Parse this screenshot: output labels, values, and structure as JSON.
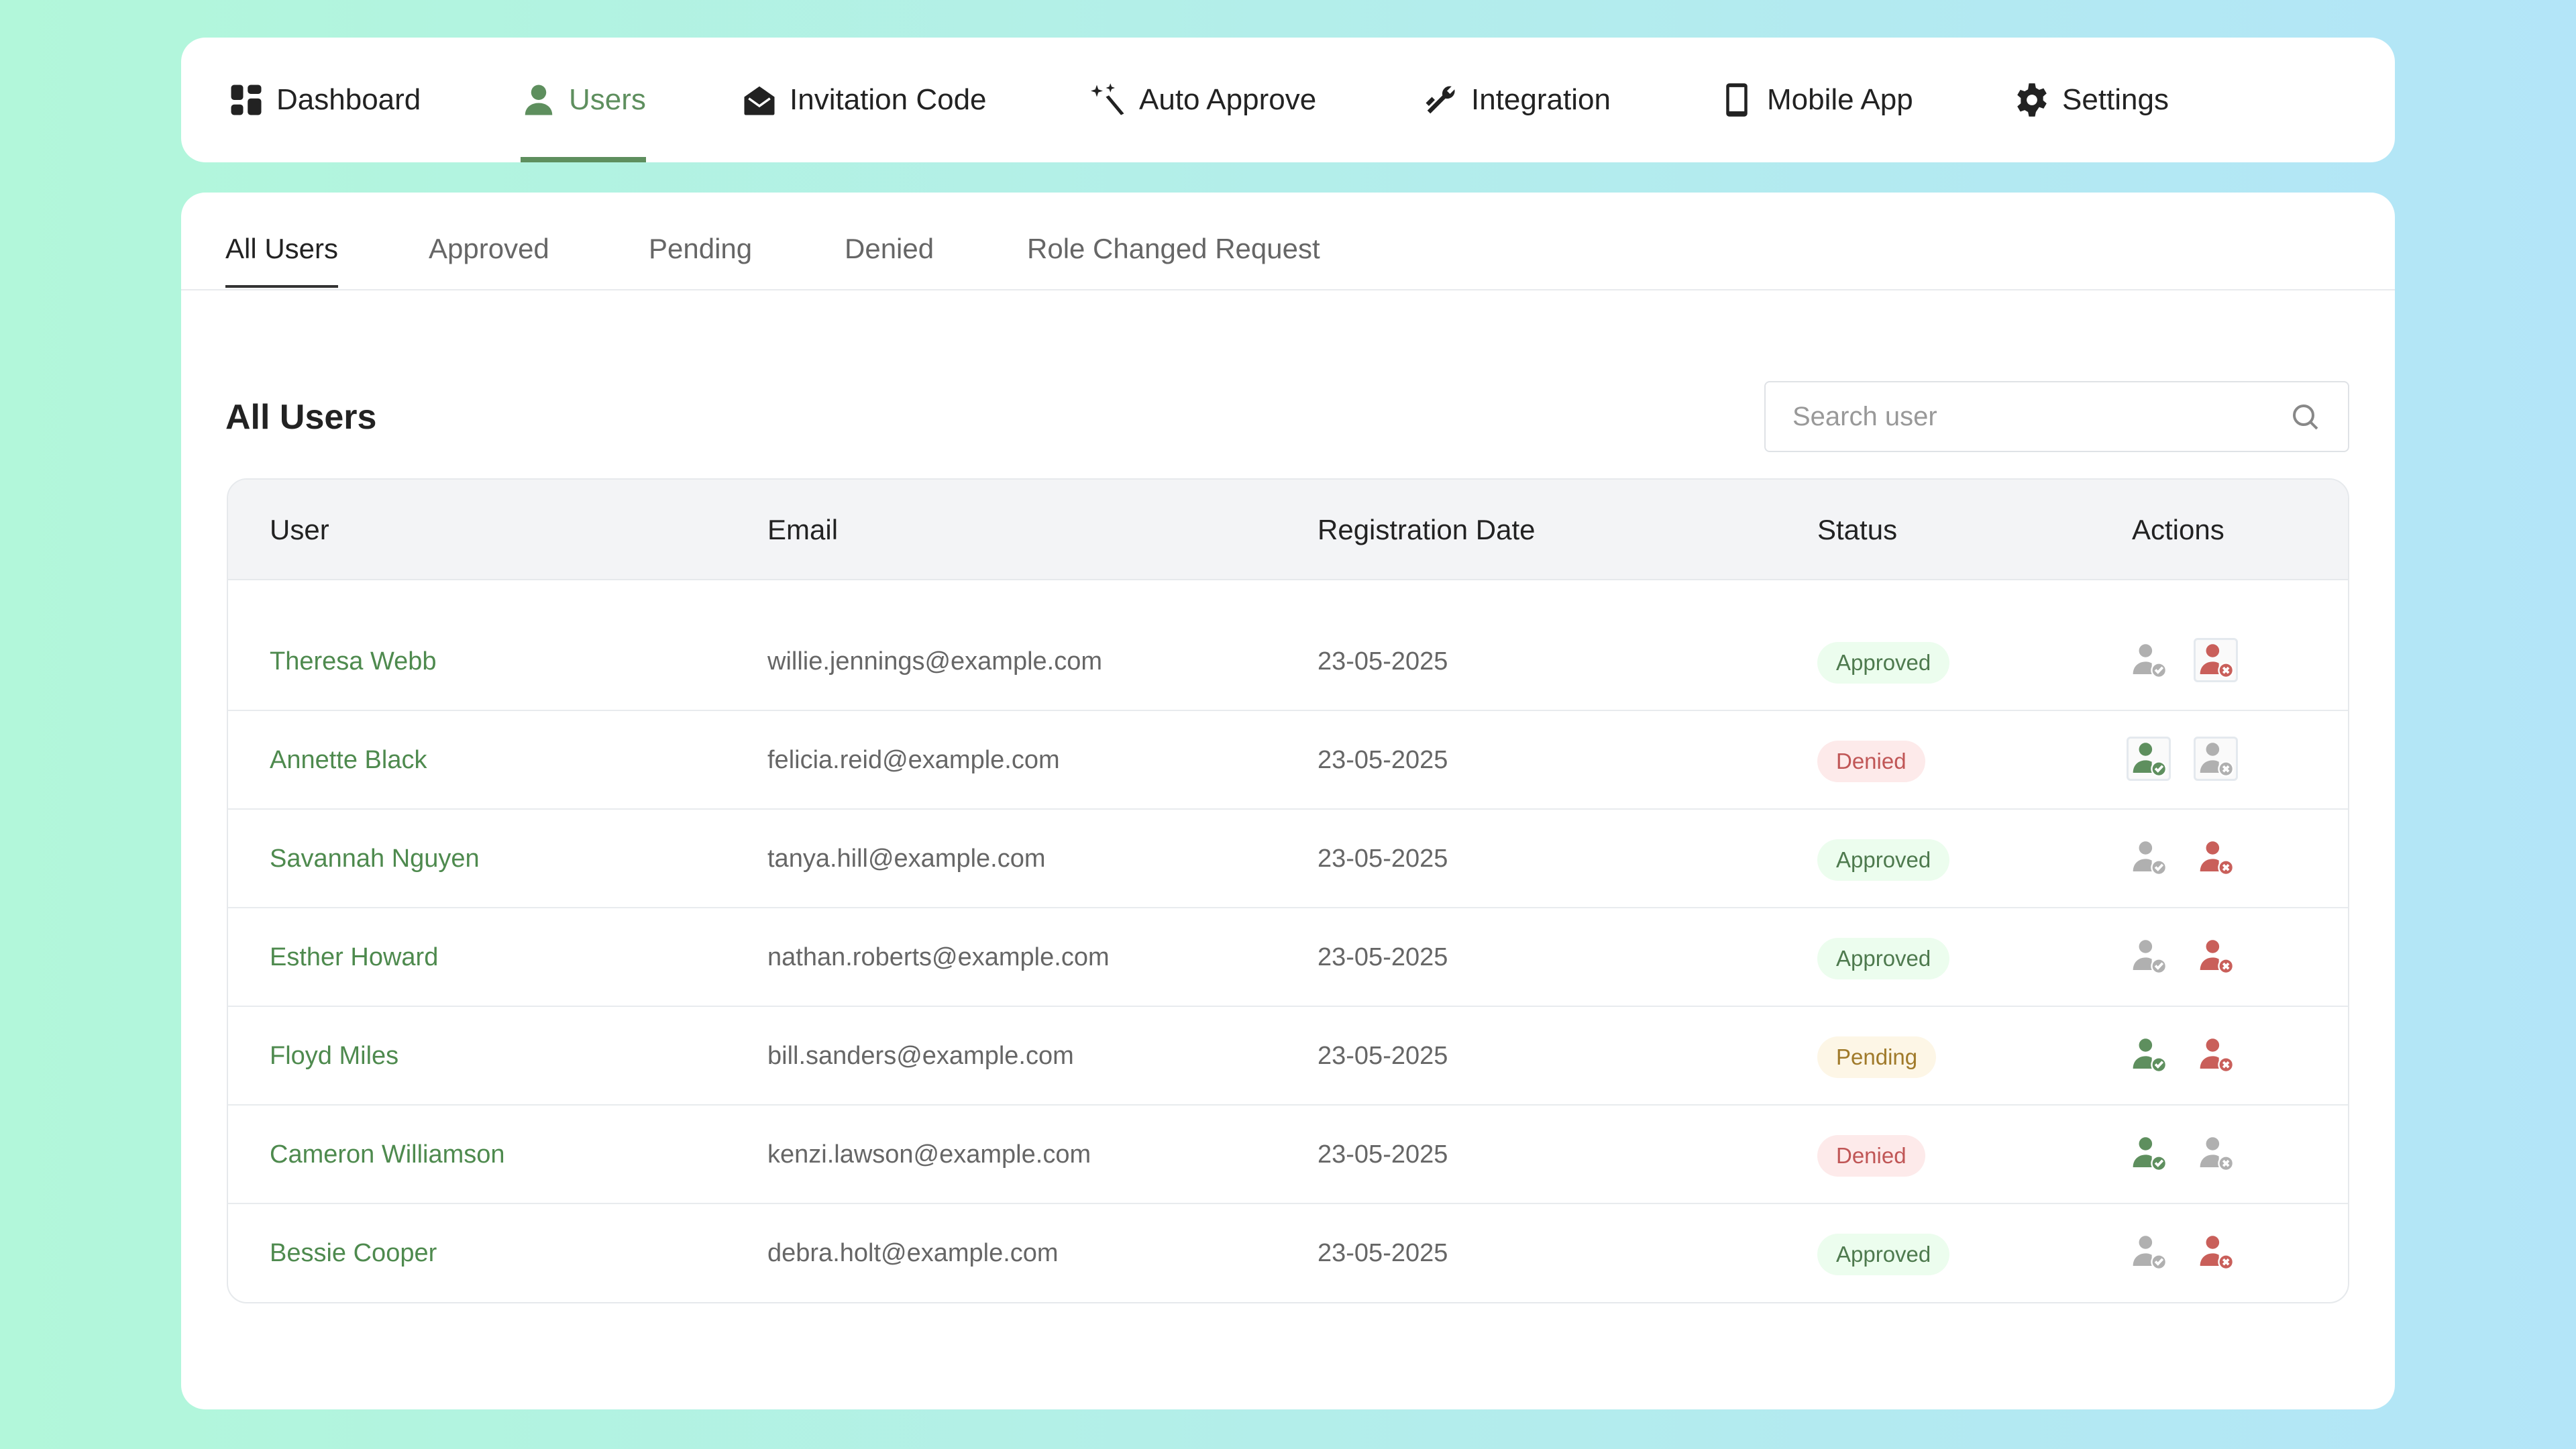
{
  "nav": {
    "items": [
      {
        "label": "Dashboard",
        "icon": "dashboard-grid-icon"
      },
      {
        "label": "Users",
        "icon": "user-icon",
        "active": true
      },
      {
        "label": "Invitation Code",
        "icon": "envelope-open-icon"
      },
      {
        "label": "Auto Approve",
        "icon": "magic-wand-icon"
      },
      {
        "label": "Integration",
        "icon": "wrench-icon"
      },
      {
        "label": "Mobile App",
        "icon": "mobile-phone-icon"
      },
      {
        "label": "Settings",
        "icon": "gear-icon"
      }
    ]
  },
  "subtabs": [
    "All Users",
    "Approved",
    "Pending",
    "Denied",
    "Role Changed Request"
  ],
  "active_subtab": "All Users",
  "heading": "All Users",
  "search": {
    "placeholder": "Search user",
    "value": ""
  },
  "table": {
    "columns": [
      "User",
      "Email",
      "Registration Date",
      "Status",
      "Actions"
    ],
    "rows": [
      {
        "name": "Theresa Webb",
        "email": "willie.jennings@example.com",
        "date": "23-05-2025",
        "status": "Approved"
      },
      {
        "name": "Annette Black",
        "email": "felicia.reid@example.com",
        "date": "23-05-2025",
        "status": "Denied"
      },
      {
        "name": "Savannah Nguyen",
        "email": "tanya.hill@example.com",
        "date": "23-05-2025",
        "status": "Approved"
      },
      {
        "name": "Esther Howard",
        "email": "nathan.roberts@example.com",
        "date": "23-05-2025",
        "status": "Approved"
      },
      {
        "name": "Floyd Miles",
        "email": "bill.sanders@example.com",
        "date": "23-05-2025",
        "status": "Pending"
      },
      {
        "name": "Cameron Williamson",
        "email": "kenzi.lawson@example.com",
        "date": "23-05-2025",
        "status": "Denied"
      },
      {
        "name": "Bessie Cooper",
        "email": "debra.holt@example.com",
        "date": "23-05-2025",
        "status": "Approved"
      }
    ]
  },
  "colors": {
    "accent": "#5e8f5e",
    "deny": "#c95f5a",
    "disabled": "#b0b0b0"
  }
}
